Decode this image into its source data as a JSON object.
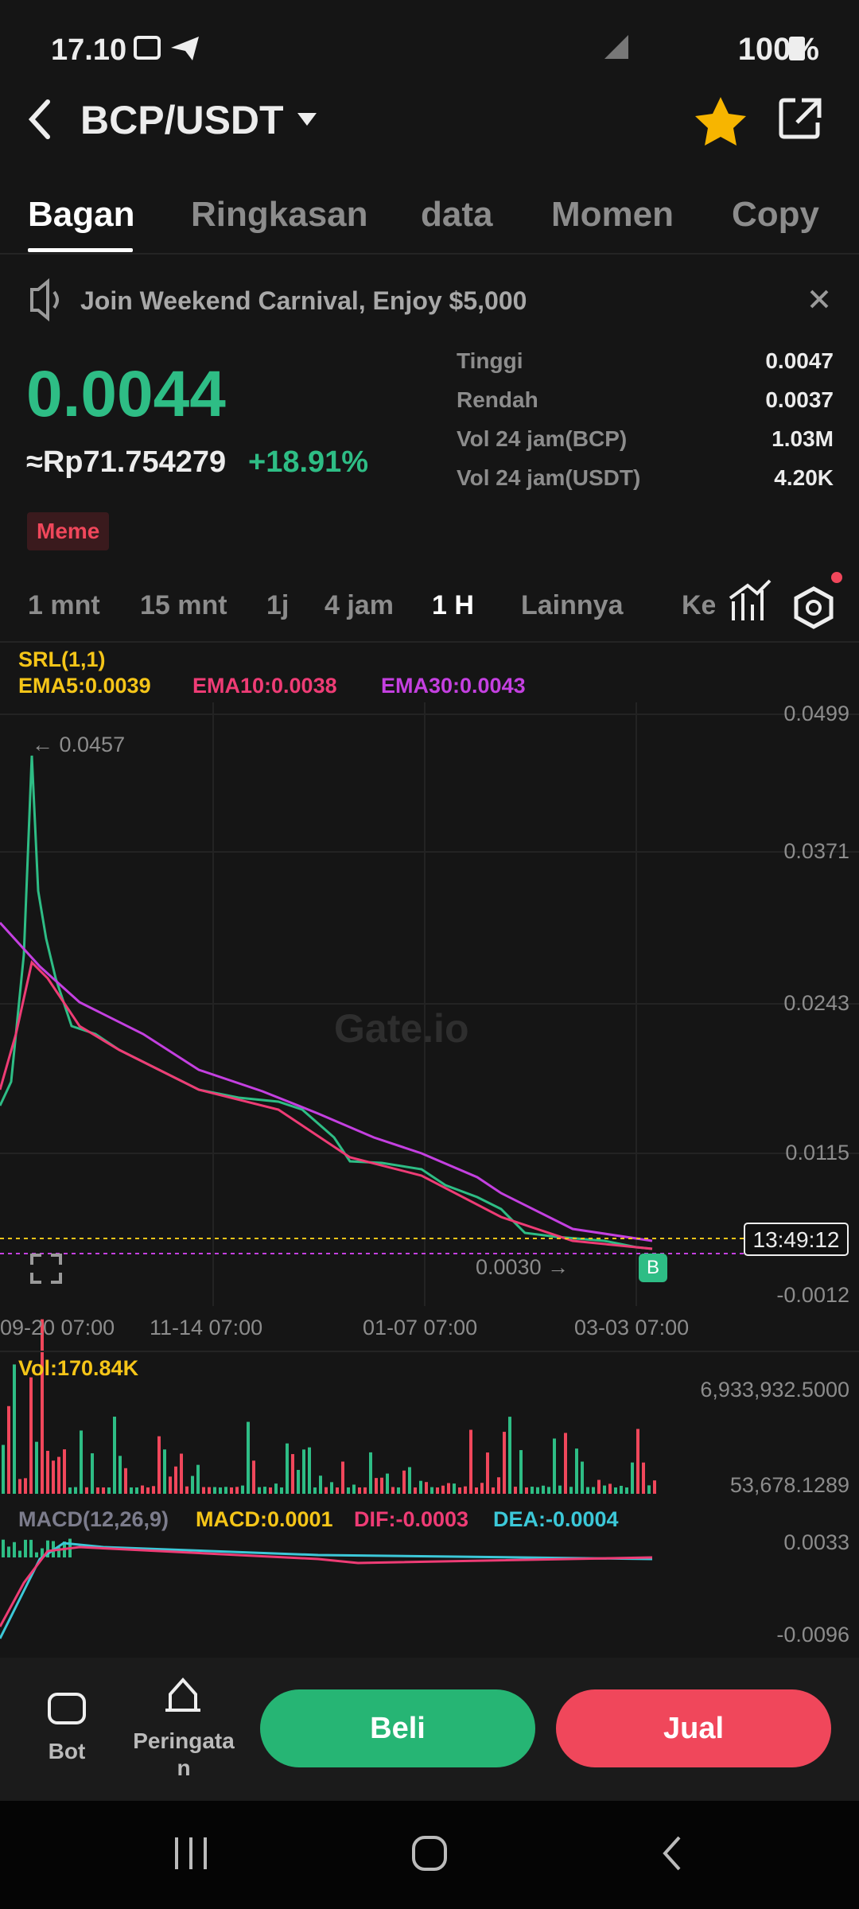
{
  "status_bar": {
    "time": "17.10",
    "battery": "100%"
  },
  "header": {
    "pair": "BCP/USDT"
  },
  "tabs": [
    "Bagan",
    "Ringkasan",
    "data",
    "Momen",
    "Copy"
  ],
  "banner": {
    "text": "Join Weekend Carnival, Enjoy $5,000"
  },
  "price": {
    "last": "0.0044",
    "fiat": "≈Rp71.754279",
    "change": "+18.91%",
    "tag": "Meme"
  },
  "stats": [
    {
      "label": "Tinggi",
      "value": "0.0047"
    },
    {
      "label": "Rendah",
      "value": "0.0037"
    },
    {
      "label": "Vol 24 jam(BCP)",
      "value": "1.03M"
    },
    {
      "label": "Vol 24 jam(USDT)",
      "value": "4.20K"
    }
  ],
  "timeframes": [
    "1 mnt",
    "15 mnt",
    "1j",
    "4 jam",
    "1 H",
    "Lainnya",
    "Ke"
  ],
  "indicators": {
    "srl": "SRL(1,1)",
    "ema5": "EMA5:0.0039",
    "ema10": "EMA10:0.0038",
    "ema30": "EMA30:0.0043"
  },
  "chart": {
    "y_axis_labels": [
      "0.0499",
      "0.0371",
      "0.0243",
      "0.0115",
      "-0.0012"
    ],
    "high_marker": "← 0.0457",
    "low_marker": "0.0030 →",
    "countdown": "13:49:12",
    "trade_marker": "B",
    "watermark": "Gate.io",
    "x_axis_labels": [
      "09-20 07:00",
      "11-14 07:00",
      "01-07 07:00",
      "03-03 07:00"
    ]
  },
  "volume": {
    "label": "Vol:170.84K",
    "axis_labels": [
      "6,933,932.5000",
      "53,678.1289"
    ]
  },
  "macd": {
    "title": "MACD(12,26,9)",
    "macd": "MACD:0.0001",
    "dif": "DIF:-0.0003",
    "dea": "DEA:-0.0004",
    "axis_labels": [
      "0.0033",
      "-0.0096"
    ]
  },
  "actions": {
    "bot": "Bot",
    "alert": "Peringatan",
    "buy": "Beli",
    "sell": "Jual"
  }
}
